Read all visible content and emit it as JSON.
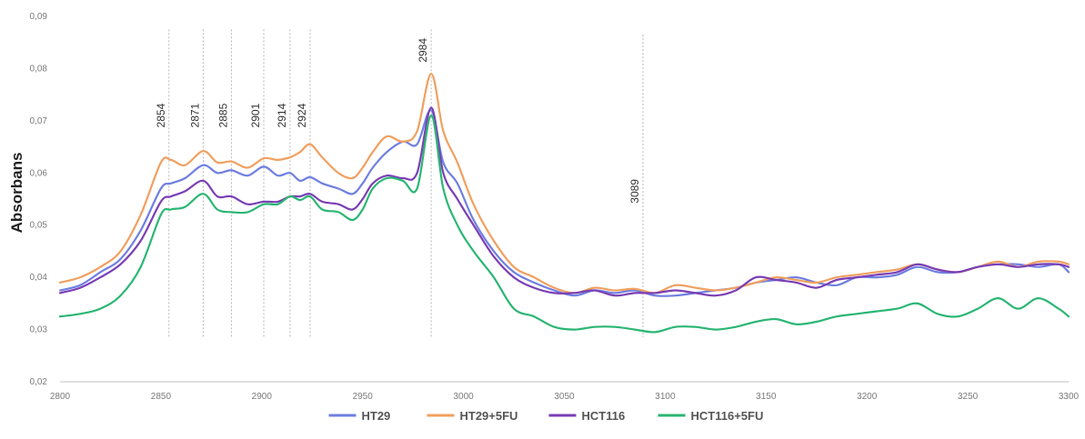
{
  "chart_data": {
    "type": "line",
    "title": "",
    "xlabel": "",
    "ylabel": "Absorbans",
    "xlim": [
      2800,
      3300
    ],
    "ylim": [
      0.02,
      0.09
    ],
    "x_ticks": [
      2800,
      2850,
      2900,
      2950,
      3000,
      3050,
      3100,
      3150,
      3200,
      3250,
      3300
    ],
    "y_ticks": [
      "0,02",
      "0,03",
      "0,04",
      "0,05",
      "0,06",
      "0,07",
      "0,08",
      "0,09"
    ],
    "y_tick_values": [
      0.02,
      0.03,
      0.04,
      0.05,
      0.06,
      0.07,
      0.08,
      0.09
    ],
    "grid": false,
    "legend_position": "bottom",
    "annotations": [
      {
        "x": 2854,
        "label": "2854"
      },
      {
        "x": 2871,
        "label": "2871"
      },
      {
        "x": 2885,
        "label": "2885"
      },
      {
        "x": 2901,
        "label": "2901"
      },
      {
        "x": 2914,
        "label": "2914"
      },
      {
        "x": 2924,
        "label": "2924"
      },
      {
        "x": 2984,
        "label": "2984"
      },
      {
        "x": 3089,
        "label": "3089"
      }
    ],
    "x": [
      2800,
      2810,
      2820,
      2830,
      2840,
      2850,
      2855,
      2862,
      2871,
      2878,
      2885,
      2893,
      2901,
      2908,
      2914,
      2919,
      2924,
      2930,
      2938,
      2945,
      2950,
      2955,
      2962,
      2970,
      2977,
      2984,
      2990,
      2997,
      3005,
      3015,
      3025,
      3035,
      3045,
      3055,
      3065,
      3075,
      3085,
      3095,
      3105,
      3115,
      3125,
      3135,
      3145,
      3155,
      3165,
      3175,
      3185,
      3195,
      3205,
      3215,
      3225,
      3235,
      3245,
      3255,
      3265,
      3275,
      3285,
      3295,
      3300
    ],
    "series": [
      {
        "name": "HT29",
        "color": "#6f7fe0",
        "values": [
          0.0375,
          0.0385,
          0.041,
          0.0435,
          0.049,
          0.057,
          0.058,
          0.059,
          0.0615,
          0.06,
          0.0605,
          0.0595,
          0.0612,
          0.0595,
          0.06,
          0.0585,
          0.0592,
          0.058,
          0.057,
          0.056,
          0.058,
          0.061,
          0.064,
          0.066,
          0.0655,
          0.072,
          0.062,
          0.058,
          0.051,
          0.045,
          0.041,
          0.039,
          0.0375,
          0.0365,
          0.0375,
          0.037,
          0.0375,
          0.0365,
          0.0365,
          0.037,
          0.0375,
          0.038,
          0.039,
          0.0395,
          0.04,
          0.039,
          0.0385,
          0.04,
          0.04,
          0.0405,
          0.042,
          0.041,
          0.041,
          0.042,
          0.0425,
          0.0425,
          0.042,
          0.0425,
          0.041
        ]
      },
      {
        "name": "HT29+5FU",
        "color": "#f0a060",
        "values": [
          0.039,
          0.04,
          0.042,
          0.045,
          0.052,
          0.062,
          0.0625,
          0.0615,
          0.0642,
          0.062,
          0.0622,
          0.061,
          0.0628,
          0.0625,
          0.063,
          0.064,
          0.0655,
          0.063,
          0.06,
          0.059,
          0.061,
          0.064,
          0.067,
          0.066,
          0.068,
          0.079,
          0.068,
          0.062,
          0.054,
          0.047,
          0.042,
          0.04,
          0.038,
          0.037,
          0.038,
          0.0375,
          0.0378,
          0.037,
          0.0385,
          0.038,
          0.0375,
          0.038,
          0.039,
          0.04,
          0.0395,
          0.039,
          0.04,
          0.0405,
          0.041,
          0.0415,
          0.0425,
          0.0415,
          0.041,
          0.042,
          0.043,
          0.042,
          0.043,
          0.043,
          0.0425
        ]
      },
      {
        "name": "HCT116",
        "color": "#7a3fb5",
        "values": [
          0.037,
          0.038,
          0.04,
          0.0425,
          0.047,
          0.0545,
          0.0555,
          0.0565,
          0.0585,
          0.0555,
          0.0555,
          0.054,
          0.0545,
          0.0545,
          0.0555,
          0.0555,
          0.056,
          0.0545,
          0.054,
          0.053,
          0.055,
          0.058,
          0.0595,
          0.059,
          0.06,
          0.0725,
          0.06,
          0.055,
          0.05,
          0.044,
          0.04,
          0.038,
          0.037,
          0.037,
          0.0375,
          0.0365,
          0.037,
          0.037,
          0.0375,
          0.037,
          0.0365,
          0.0375,
          0.04,
          0.0395,
          0.039,
          0.038,
          0.0395,
          0.04,
          0.0405,
          0.041,
          0.0425,
          0.0415,
          0.041,
          0.042,
          0.0425,
          0.042,
          0.0425,
          0.0425,
          0.042
        ]
      },
      {
        "name": "HCT116+5FU",
        "color": "#2bb673",
        "values": [
          0.0325,
          0.033,
          0.034,
          0.0365,
          0.042,
          0.052,
          0.053,
          0.0535,
          0.056,
          0.053,
          0.0525,
          0.0525,
          0.054,
          0.054,
          0.0555,
          0.0548,
          0.0555,
          0.053,
          0.0525,
          0.051,
          0.053,
          0.057,
          0.059,
          0.0585,
          0.057,
          0.071,
          0.057,
          0.05,
          0.045,
          0.04,
          0.034,
          0.0325,
          0.0305,
          0.03,
          0.0305,
          0.0305,
          0.03,
          0.0295,
          0.0305,
          0.0305,
          0.03,
          0.0305,
          0.0315,
          0.032,
          0.031,
          0.0315,
          0.0325,
          0.033,
          0.0335,
          0.034,
          0.035,
          0.033,
          0.0325,
          0.034,
          0.036,
          0.034,
          0.036,
          0.034,
          0.0325
        ]
      }
    ]
  }
}
